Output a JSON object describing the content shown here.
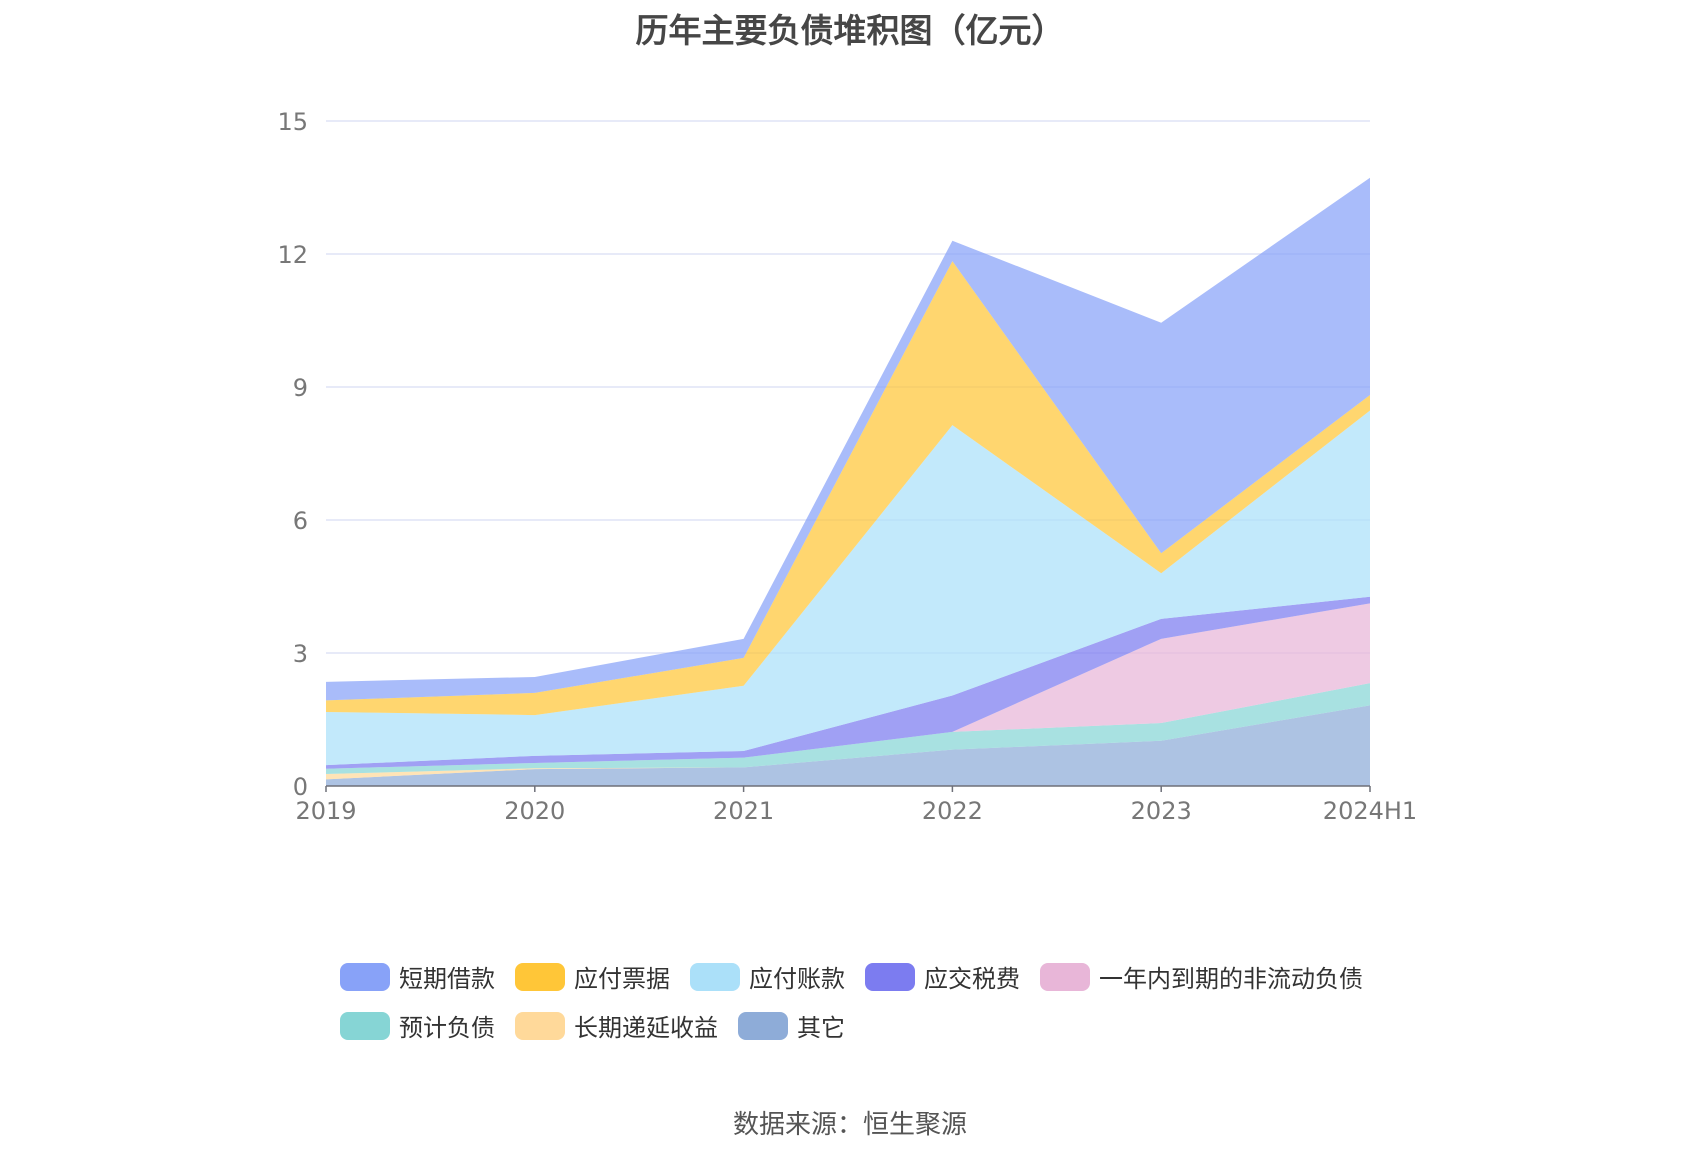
{
  "chart_data": {
    "type": "area",
    "title": "历年主要负债堆积图（亿元）",
    "stacked": true,
    "x": [
      "2019",
      "2020",
      "2021",
      "2022",
      "2023",
      "2024H1"
    ],
    "y_ticks": [
      "0",
      "3",
      "6",
      "9",
      "12",
      "15"
    ],
    "ylim": [
      0,
      15
    ],
    "grid": true,
    "legend_position": "bottom",
    "series": [
      {
        "name": "其它",
        "color": "#8eacd8",
        "values": [
          0.15,
          0.38,
          0.42,
          0.82,
          1.02,
          1.82
        ]
      },
      {
        "name": "长期递延收益",
        "color": "#ffd99a",
        "values": [
          0.12,
          0.02,
          0.0,
          0.0,
          0.0,
          0.0
        ]
      },
      {
        "name": "预计负债",
        "color": "#86d5d5",
        "values": [
          0.12,
          0.12,
          0.22,
          0.4,
          0.4,
          0.5
        ]
      },
      {
        "name": "一年内到期的非流动负债",
        "color": "#e8b6d8",
        "values": [
          0.0,
          0.0,
          0.0,
          0.0,
          1.9,
          1.8
        ]
      },
      {
        "name": "应交税费",
        "color": "#7c7cf0",
        "values": [
          0.08,
          0.16,
          0.15,
          0.82,
          0.45,
          0.15
        ]
      },
      {
        "name": "应付账款",
        "color": "#abe0f9",
        "values": [
          1.2,
          0.92,
          1.47,
          6.1,
          1.03,
          4.2
        ]
      },
      {
        "name": "应付票据",
        "color": "#ffc638",
        "values": [
          0.26,
          0.5,
          0.63,
          3.7,
          0.45,
          0.35
        ]
      },
      {
        "name": "短期借款",
        "color": "#88a2f8",
        "values": [
          0.42,
          0.36,
          0.43,
          0.46,
          5.2,
          4.9
        ]
      }
    ],
    "legend_order": [
      "短期借款",
      "应付票据",
      "应付账款",
      "应交税费",
      "一年内到期的非流动负债",
      "预计负债",
      "长期递延收益",
      "其它"
    ]
  },
  "source": "数据来源：恒生聚源"
}
